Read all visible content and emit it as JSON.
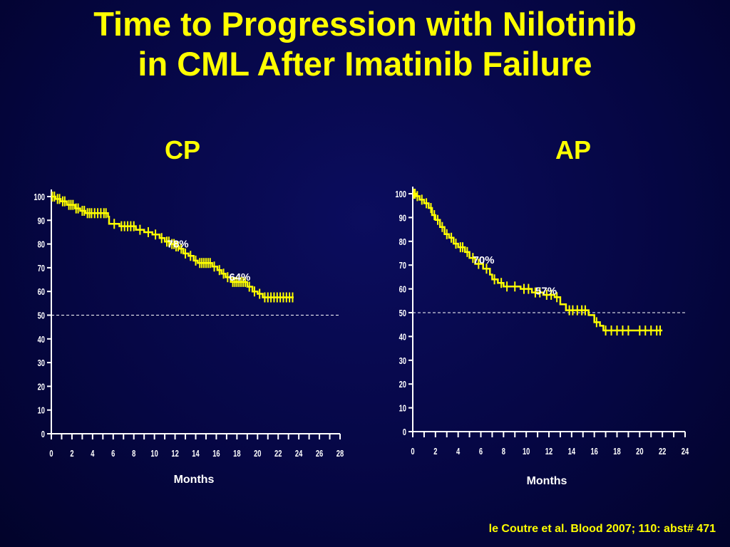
{
  "slide": {
    "title_line1": "Time to Progression with Nilotinib",
    "title_line2": "in CML After Imatinib Failure",
    "citation": "le Coutre et al. Blood 2007; 110: abst# 471"
  },
  "colors": {
    "curve": "#ffff00",
    "text": "#ffffff",
    "title": "#ffff00",
    "reference": "#ffffff"
  },
  "chart_data": [
    {
      "type": "line",
      "panel": "CP",
      "title": "CP",
      "xlabel": "Months",
      "ylabel": "",
      "xlim": [
        0,
        28
      ],
      "ylim": [
        0,
        100
      ],
      "xticks": [
        0,
        2,
        4,
        6,
        8,
        10,
        12,
        14,
        16,
        18,
        20,
        22,
        24,
        26,
        28
      ],
      "yticks": [
        0,
        10,
        20,
        30,
        40,
        50,
        60,
        70,
        80,
        90,
        100
      ],
      "reference_line": {
        "y": 50,
        "x_end": 28
      },
      "series": [
        {
          "name": "CP",
          "step": [
            [
              0,
              100
            ],
            [
              0.4,
              99
            ],
            [
              0.9,
              98
            ],
            [
              1.5,
              96.5
            ],
            [
              2.3,
              95
            ],
            [
              2.8,
              94
            ],
            [
              3.3,
              93
            ],
            [
              5.5,
              91.5
            ],
            [
              5.6,
              88.5
            ],
            [
              6.6,
              87.5
            ],
            [
              8.2,
              86
            ],
            [
              9,
              85
            ],
            [
              9.8,
              84
            ],
            [
              10.5,
              82.5
            ],
            [
              11,
              81
            ],
            [
              11.5,
              80
            ],
            [
              12,
              79
            ],
            [
              12.4,
              78
            ],
            [
              12.8,
              76
            ],
            [
              13.3,
              75
            ],
            [
              13.8,
              73
            ],
            [
              14.2,
              72
            ],
            [
              15.6,
              70.5
            ],
            [
              16.1,
              69
            ],
            [
              16.5,
              67.5
            ],
            [
              16.9,
              66
            ],
            [
              17.4,
              64
            ],
            [
              19,
              62
            ],
            [
              19.5,
              60
            ],
            [
              20,
              59
            ],
            [
              20.5,
              57.5
            ],
            [
              23.5,
              57.5
            ]
          ],
          "censors": [
            0.1,
            0.3,
            0.6,
            0.8,
            1.1,
            1.3,
            1.7,
            1.9,
            2.1,
            2.4,
            2.6,
            3.0,
            3.2,
            3.5,
            3.7,
            3.9,
            4.2,
            4.5,
            4.8,
            5.1,
            5.3,
            6.1,
            6.8,
            7.1,
            7.4,
            7.7,
            8.0,
            8.6,
            9.4,
            10.1,
            10.7,
            11.2,
            11.4,
            11.7,
            11.9,
            12.1,
            12.3,
            12.6,
            13.0,
            13.5,
            14.0,
            14.4,
            14.6,
            14.8,
            15.0,
            15.2,
            15.4,
            15.8,
            16.3,
            16.7,
            17.1,
            17.6,
            17.8,
            18.0,
            18.2,
            18.4,
            18.6,
            18.8,
            19.2,
            19.7,
            20.2,
            20.7,
            21.0,
            21.3,
            21.6,
            21.9,
            22.2,
            22.5,
            22.8,
            23.1,
            23.4
          ],
          "annotations": [
            {
              "x": 12,
              "y": 78,
              "label": "78%"
            },
            {
              "x": 18,
              "y": 64,
              "label": "64%"
            }
          ]
        }
      ]
    },
    {
      "type": "line",
      "panel": "AP",
      "title": "AP",
      "xlabel": "Months",
      "ylabel": "",
      "xlim": [
        0,
        24
      ],
      "ylim": [
        0,
        100
      ],
      "xticks": [
        0,
        2,
        4,
        6,
        8,
        10,
        12,
        14,
        16,
        18,
        20,
        22,
        24
      ],
      "yticks": [
        0,
        10,
        20,
        30,
        40,
        50,
        60,
        70,
        80,
        90,
        100
      ],
      "reference_line": {
        "y": 50,
        "x_end": 24
      },
      "series": [
        {
          "name": "AP",
          "step": [
            [
              0,
              100
            ],
            [
              0.3,
              99
            ],
            [
              0.6,
              97.5
            ],
            [
              1,
              96
            ],
            [
              1.4,
              94
            ],
            [
              1.7,
              91
            ],
            [
              2,
              89
            ],
            [
              2.4,
              86
            ],
            [
              2.8,
              83
            ],
            [
              3.2,
              81.5
            ],
            [
              3.6,
              79
            ],
            [
              4,
              77.5
            ],
            [
              4.6,
              75.5
            ],
            [
              5,
              73
            ],
            [
              5.5,
              70.5
            ],
            [
              6.2,
              68.5
            ],
            [
              6.8,
              66
            ],
            [
              7,
              64
            ],
            [
              7.5,
              62.5
            ],
            [
              8,
              61
            ],
            [
              9.5,
              60
            ],
            [
              10.5,
              58.5
            ],
            [
              11.5,
              57.5
            ],
            [
              12.5,
              56.5
            ],
            [
              13,
              53.5
            ],
            [
              13.5,
              51
            ],
            [
              15.5,
              49
            ],
            [
              16,
              46
            ],
            [
              16.5,
              44.5
            ],
            [
              16.8,
              42.5
            ],
            [
              22,
              42.5
            ]
          ],
          "censors": [
            0.1,
            0.2,
            0.4,
            0.8,
            1.2,
            1.6,
            1.9,
            2.2,
            2.6,
            3.0,
            3.4,
            3.8,
            4.2,
            4.4,
            4.8,
            5.3,
            5.8,
            6.5,
            7.2,
            7.8,
            8.3,
            9.0,
            9.8,
            10.2,
            10.8,
            11.2,
            11.8,
            12.2,
            12.7,
            13.8,
            14.1,
            14.5,
            14.9,
            15.2,
            16.2,
            17.0,
            17.5,
            18.0,
            18.5,
            19.0,
            20.0,
            20.5,
            21.0,
            21.5,
            21.8
          ],
          "annotations": [
            {
              "x": 6,
              "y": 70,
              "label": "70%"
            },
            {
              "x": 11.5,
              "y": 57,
              "label": "57%"
            }
          ]
        }
      ]
    }
  ]
}
